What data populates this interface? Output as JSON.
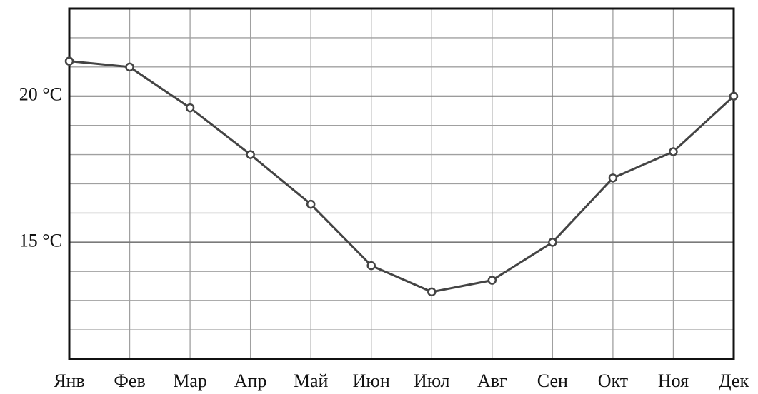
{
  "chart_data": {
    "type": "line",
    "categories": [
      "Янв",
      "Фев",
      "Мар",
      "Апр",
      "Май",
      "Июн",
      "Июл",
      "Авг",
      "Сен",
      "Окт",
      "Ноя",
      "Дек"
    ],
    "series": [
      {
        "color": "#444444",
        "values": [
          21.2,
          21.0,
          19.6,
          18.0,
          16.3,
          14.2,
          13.3,
          13.7,
          15.0,
          17.2,
          18.1,
          20.0
        ]
      }
    ],
    "ylim": [
      11,
      23
    ],
    "yticks": [
      {
        "value": 15,
        "label": "15 °C"
      },
      {
        "value": 20,
        "label": "20 °C"
      }
    ],
    "minor_yticks": [
      12,
      13,
      14,
      16,
      17,
      18,
      19,
      21,
      22
    ],
    "grid": true
  }
}
